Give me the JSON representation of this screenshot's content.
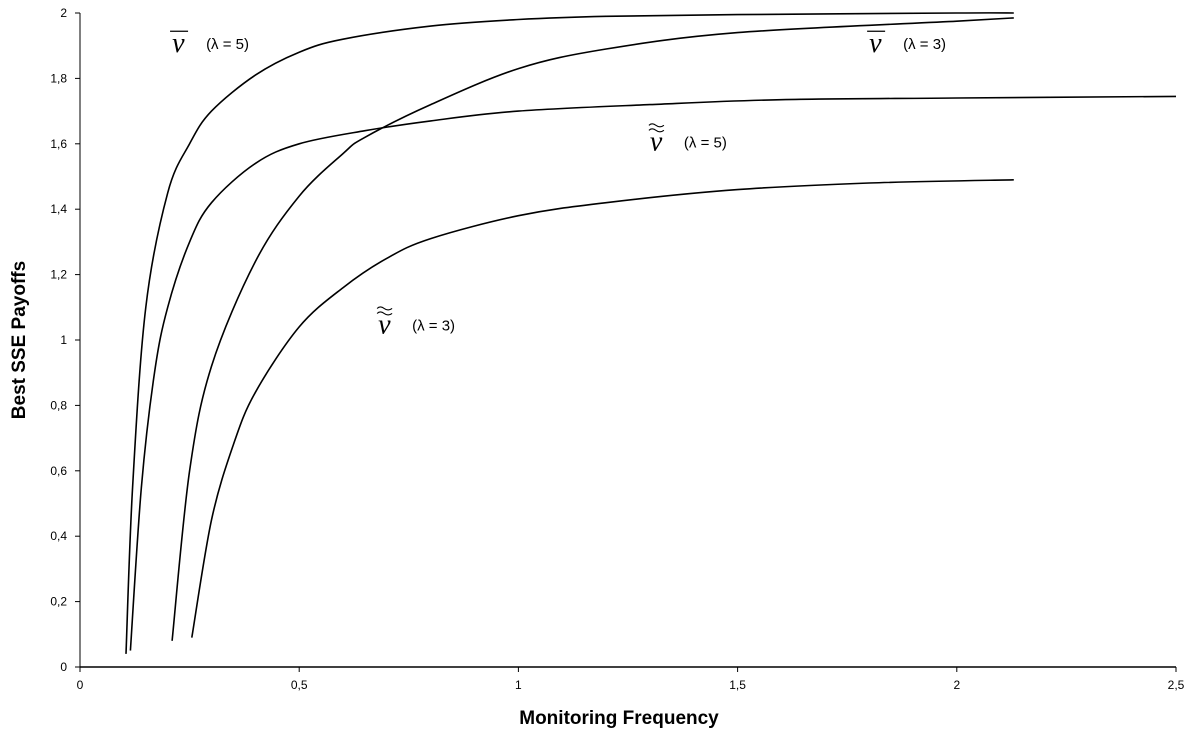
{
  "chart_data": {
    "type": "line",
    "xlabel": "Monitoring Frequency",
    "ylabel": "Best SSE Payoffs",
    "xlim": [
      0,
      2.5
    ],
    "ylim": [
      0,
      2
    ],
    "x_ticks": [
      "0",
      "0,5",
      "1",
      "1,5",
      "2",
      "2,5"
    ],
    "y_ticks": [
      "0",
      "0,2",
      "0,4",
      "0,6",
      "0,8",
      "1",
      "1,2",
      "1,4",
      "1,6",
      "1,8",
      "2"
    ],
    "grid": false,
    "series": [
      {
        "symbol": "v",
        "accent": "bar",
        "lambda_label": "(λ = 5)",
        "x": [
          0.105,
          0.12,
          0.15,
          0.2,
          0.25,
          0.3,
          0.4,
          0.5,
          0.6,
          0.8,
          1.0,
          1.2,
          1.5,
          2.0,
          2.13
        ],
        "y": [
          0.04,
          0.55,
          1.1,
          1.45,
          1.6,
          1.7,
          1.81,
          1.88,
          1.92,
          1.96,
          1.98,
          1.99,
          1.995,
          2.0,
          2.0
        ]
      },
      {
        "symbol": "v",
        "accent": "bar",
        "lambda_label": "(λ = 3)",
        "x": [
          0.21,
          0.25,
          0.3,
          0.4,
          0.5,
          0.6,
          0.65,
          0.8,
          1.0,
          1.2,
          1.5,
          2.0,
          2.13
        ],
        "y": [
          0.08,
          0.6,
          0.92,
          1.24,
          1.44,
          1.57,
          1.62,
          1.72,
          1.83,
          1.89,
          1.94,
          1.975,
          1.985
        ]
      },
      {
        "symbol": "v",
        "accent": "double-tilde",
        "lambda_label": "(λ = 5)",
        "x": [
          0.115,
          0.14,
          0.17,
          0.2,
          0.25,
          0.3,
          0.4,
          0.5,
          0.65,
          0.8,
          1.0,
          1.3,
          1.6,
          2.0,
          2.5
        ],
        "y": [
          0.05,
          0.55,
          0.9,
          1.1,
          1.3,
          1.42,
          1.54,
          1.6,
          1.64,
          1.67,
          1.7,
          1.72,
          1.735,
          1.74,
          1.745
        ]
      },
      {
        "symbol": "v",
        "accent": "double-tilde",
        "lambda_label": "(λ = 3)",
        "x": [
          0.255,
          0.3,
          0.35,
          0.4,
          0.5,
          0.6,
          0.7,
          0.8,
          1.0,
          1.2,
          1.5,
          1.8,
          2.13
        ],
        "y": [
          0.09,
          0.45,
          0.68,
          0.84,
          1.04,
          1.16,
          1.25,
          1.31,
          1.38,
          1.42,
          1.46,
          1.48,
          1.49
        ]
      }
    ]
  }
}
